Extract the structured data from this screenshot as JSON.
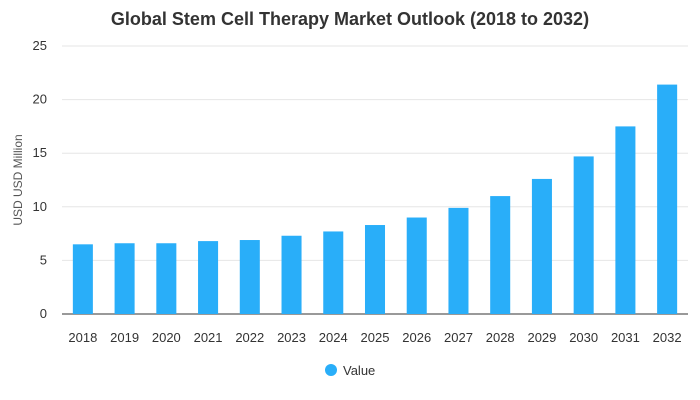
{
  "chart_data": {
    "type": "bar",
    "title": "Global Stem Cell Therapy Market Outlook (2018 to 2032)",
    "xlabel": "",
    "ylabel": "USD USD Million",
    "ylim": [
      0,
      25
    ],
    "yticks": [
      0,
      5,
      10,
      15,
      20,
      25
    ],
    "grid": true,
    "legend_position": "bottom",
    "categories": [
      "2018",
      "2019",
      "2020",
      "2021",
      "2022",
      "2023",
      "2024",
      "2025",
      "2026",
      "2027",
      "2028",
      "2029",
      "2030",
      "2031",
      "2032"
    ],
    "series": [
      {
        "name": "Value",
        "color": "#29aef9",
        "values": [
          6.5,
          6.6,
          6.6,
          6.8,
          6.9,
          7.3,
          7.7,
          8.3,
          9.0,
          9.9,
          11.0,
          12.6,
          14.7,
          17.5,
          21.4
        ]
      }
    ]
  }
}
